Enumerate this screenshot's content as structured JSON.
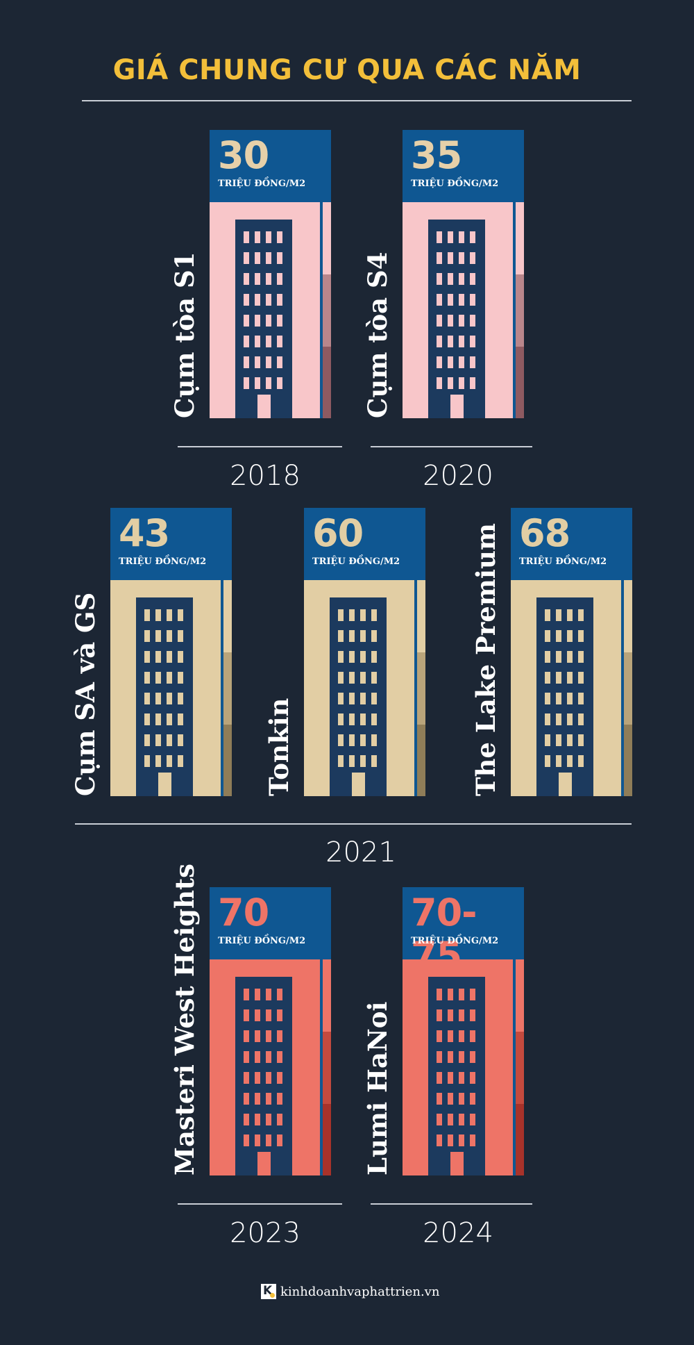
{
  "title": "GIÁ CHUNG CƯ QUA CÁC NĂM",
  "colors": {
    "background": "#1c2634",
    "title": "#f3bf3a",
    "banner": "#0f5792",
    "tower": "#1c3a5e",
    "theme_2018_2020": {
      "wall": "#f8c6c9",
      "price": "#e6d0a9",
      "side": [
        "#f8c6c9",
        "#b9868b",
        "#8e5a61"
      ]
    },
    "theme_2021": {
      "wall": "#e2cea4",
      "price": "#e2cea4",
      "side": [
        "#e2cea4",
        "#b9a47a",
        "#8f7d58"
      ]
    },
    "theme_2023_2024": {
      "wall": "#ee7467",
      "price": "#ee7467",
      "side": [
        "#ee7467",
        "#c44a3e",
        "#a8322a"
      ]
    }
  },
  "unit_label": "TRIỆU ĐỒNG/M2",
  "chart_data": {
    "type": "bar",
    "title": "GIÁ CHUNG CƯ QUA CÁC NĂM",
    "unit": "TRIỆU ĐỒNG/M2",
    "groups": [
      {
        "year": "2018",
        "items": [
          {
            "name": "Cụm tòa S1",
            "price_label": "30",
            "value": 30
          }
        ]
      },
      {
        "year": "2020",
        "items": [
          {
            "name": "Cụm tòa S4",
            "price_label": "35",
            "value": 35
          }
        ]
      },
      {
        "year": "2021",
        "items": [
          {
            "name": "Cụm SA và GS",
            "price_label": "43",
            "value": 43
          },
          {
            "name": "Tonkin",
            "price_label": "60",
            "value": 60
          },
          {
            "name": "The Lake Premium",
            "price_label": "68",
            "value": 68
          }
        ]
      },
      {
        "year": "2023",
        "items": [
          {
            "name": "Masteri West Heights",
            "price_label": "70",
            "value": 70
          }
        ]
      },
      {
        "year": "2024",
        "items": [
          {
            "name": "Lumi HaNoi",
            "price_label": "70-75",
            "value": [
              70,
              75
            ]
          }
        ]
      }
    ]
  },
  "footer": {
    "logo_letter": "K",
    "site": "kinhdoanhvaphattrien.vn"
  }
}
